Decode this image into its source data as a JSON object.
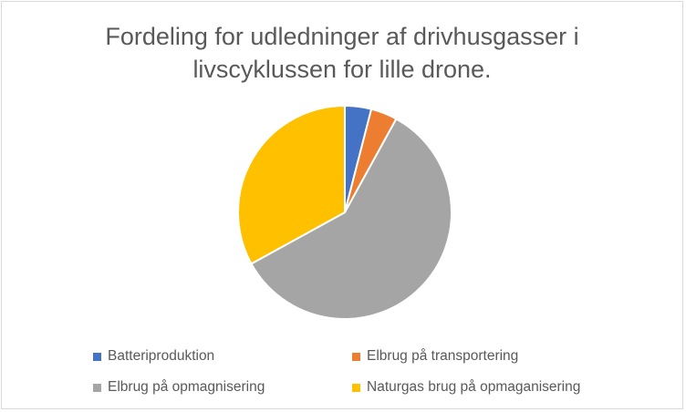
{
  "chart_data": {
    "type": "pie",
    "title": "Fordeling for udledninger af drivhusgasser i livscyklussen for lille drone.",
    "title_lines": [
      "Fordeling for udledninger af drivhusgasser i",
      "livscyklussen for lille drone."
    ],
    "legend_position": "bottom",
    "start_angle_deg": 0,
    "direction": "clockwise",
    "slices": [
      {
        "label": "Batteriproduktion",
        "value": 4,
        "color": "#4472C4"
      },
      {
        "label": "Elbrug på transportering",
        "value": 4,
        "color": "#ED7D31"
      },
      {
        "label": "Elbrug på opmagnisering",
        "value": 59,
        "color": "#A5A5A5"
      },
      {
        "label": "Naturgas brug på opmaganisering",
        "value": 33,
        "color": "#FFC000"
      }
    ]
  }
}
